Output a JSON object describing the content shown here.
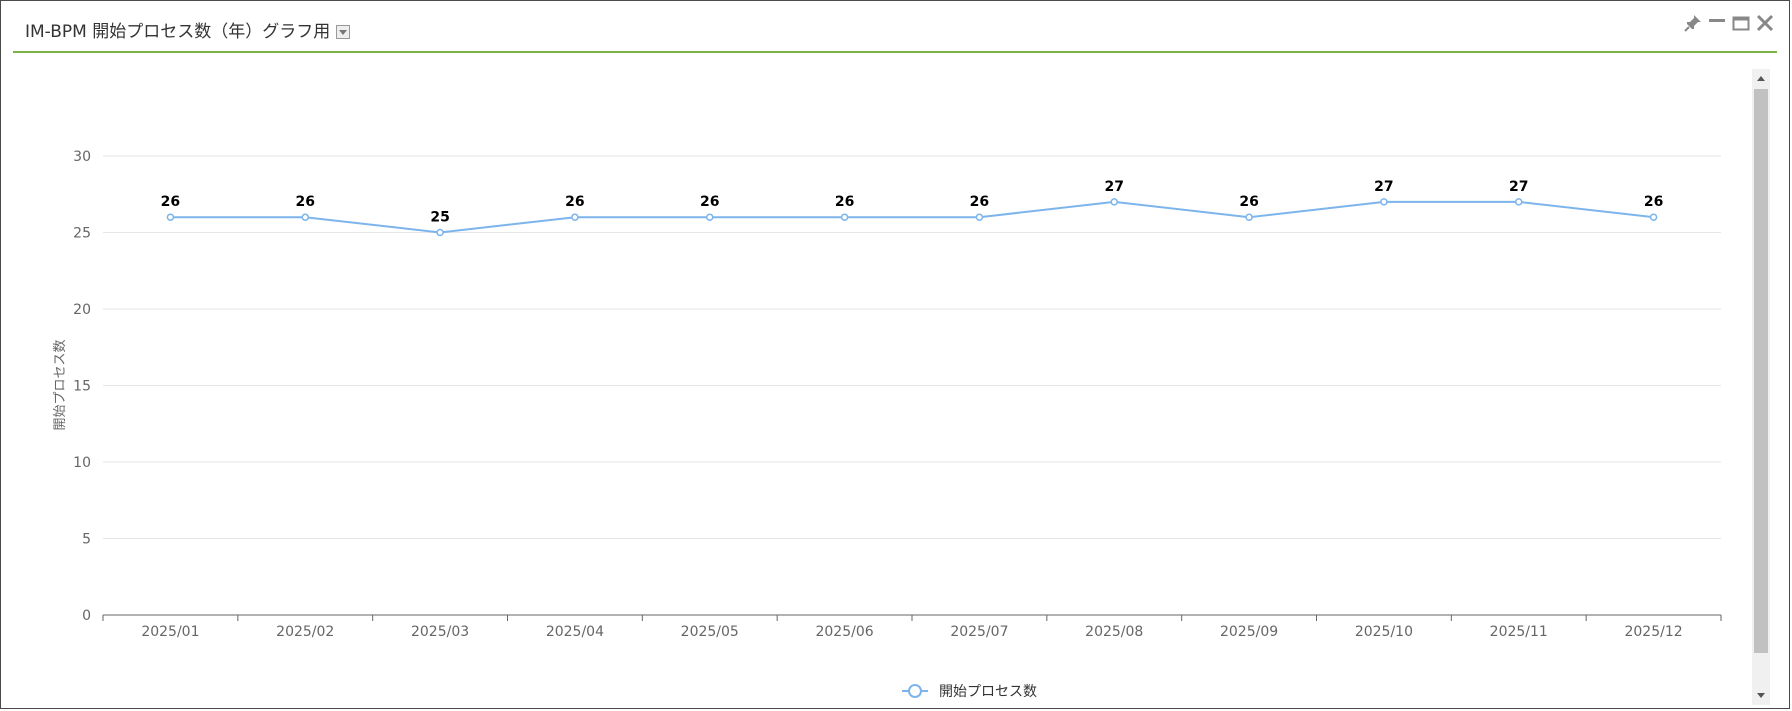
{
  "portlet": {
    "title": "IM-BPM 開始プロセス数（年）グラフ用"
  },
  "colors": {
    "series": "#7cb5ec",
    "header_accent": "#7cb342",
    "grid": "#e6e6e6"
  },
  "icons": [
    "chevron-down-icon",
    "pin-icon",
    "minimize-icon",
    "maximize-icon",
    "close-icon"
  ],
  "chart_data": {
    "type": "line",
    "categories": [
      "2025/01",
      "2025/02",
      "2025/03",
      "2025/04",
      "2025/05",
      "2025/06",
      "2025/07",
      "2025/08",
      "2025/09",
      "2025/10",
      "2025/11",
      "2025/12"
    ],
    "series": [
      {
        "name": "開始プロセス数",
        "values": [
          26,
          26,
          25,
          26,
          26,
          26,
          26,
          27,
          26,
          27,
          27,
          26
        ]
      }
    ],
    "title": "",
    "xlabel": "",
    "ylabel": "開始プロセス数",
    "ylim": [
      0,
      30
    ],
    "yticks": [
      0,
      5,
      10,
      15,
      20,
      25,
      30
    ],
    "grid": true,
    "data_labels": true,
    "legend_position": "bottom-center"
  }
}
